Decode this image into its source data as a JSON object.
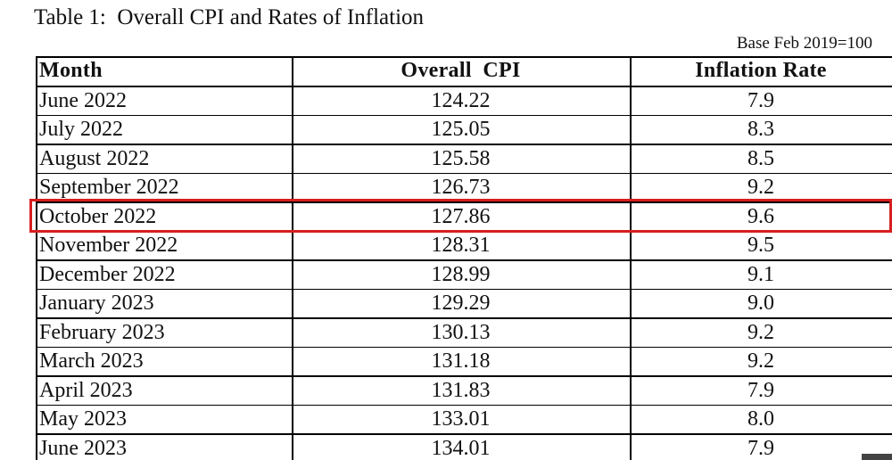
{
  "title": "Table 1:  Overall CPI and Rates of Inflation",
  "note": "Base Feb 2019=100",
  "table": {
    "header": [
      "Month",
      "Overall  CPI",
      "Inflation Rate"
    ],
    "rows": [
      [
        "June 2022",
        "124.22",
        "7.9"
      ],
      [
        "July 2022",
        "125.05",
        "8.3"
      ],
      [
        "August 2022",
        "125.58",
        "8.5"
      ],
      [
        "September 2022",
        "126.73",
        "9.2"
      ],
      [
        "October 2022",
        "127.86",
        "9.6"
      ],
      [
        "November 2022",
        "128.31",
        "9.5"
      ],
      [
        "December 2022",
        "128.99",
        "9.1"
      ],
      [
        "January 2023",
        "129.29",
        "9.0"
      ],
      [
        "February 2023",
        "130.13",
        "9.2"
      ],
      [
        "March 2023",
        "131.18",
        "9.2"
      ],
      [
        "April 2023",
        "131.83",
        "7.9"
      ],
      [
        "May 2023",
        "133.01",
        "8.0"
      ],
      [
        "June 2023",
        "134.01",
        "7.9"
      ]
    ]
  },
  "highlight_row": 4
}
